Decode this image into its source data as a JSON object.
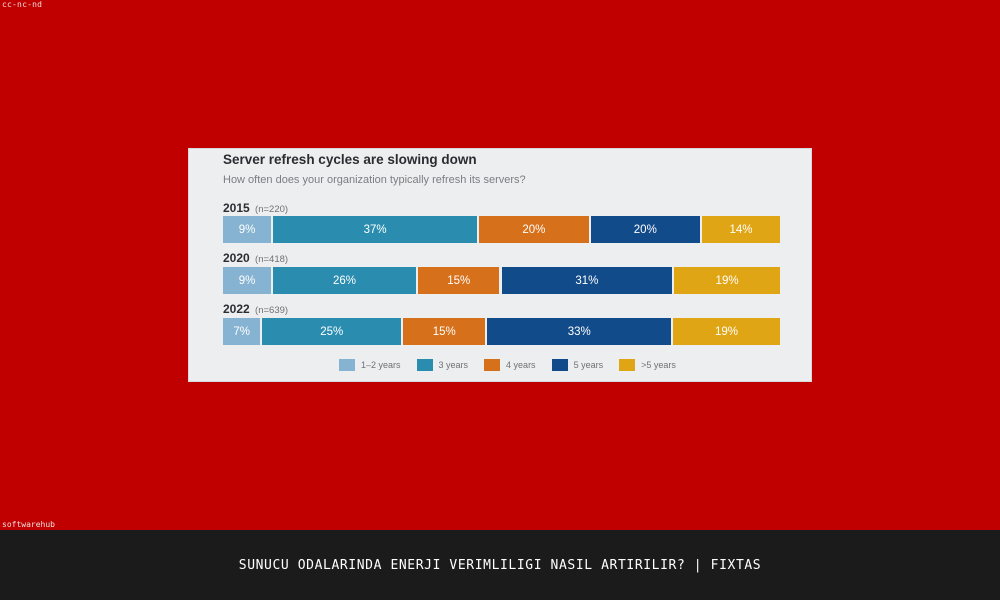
{
  "license_text": "cc-nc-nd",
  "watermark_text": "softwarehub",
  "footer": {
    "title": "SUNUCU ODALARINDA ENERJI VERIMLILIGI NASIL ARTIRILIR? | FIXTAS"
  },
  "colors": {
    "page_background": "#c00000",
    "footer_background": "#1b1b1b",
    "series": [
      "#86b3d1",
      "#2a8db0",
      "#d7701a",
      "#124b8a",
      "#e0a514"
    ]
  },
  "chart_data": {
    "type": "bar",
    "orientation": "horizontal-stacked-100",
    "title": "Server refresh cycles are slowing down",
    "subtitle": "How often does your organization typically refresh its servers?",
    "legend_position": "bottom",
    "series_names": [
      "1–2 years",
      "3 years",
      "4 years",
      "5 years",
      ">5 years"
    ],
    "rows": [
      {
        "year": "2015",
        "n": "(n=220)",
        "values": [
          9,
          37,
          20,
          20,
          14
        ],
        "labels": [
          "9%",
          "37%",
          "20%",
          "20%",
          "14%"
        ]
      },
      {
        "year": "2020",
        "n": "(n=418)",
        "values": [
          9,
          26,
          15,
          31,
          19
        ],
        "labels": [
          "9%",
          "26%",
          "15%",
          "31%",
          "19%"
        ]
      },
      {
        "year": "2022",
        "n": "(n=639)",
        "values": [
          7,
          25,
          15,
          33,
          19
        ],
        "labels": [
          "7%",
          "25%",
          "15%",
          "33%",
          "19%"
        ]
      }
    ]
  }
}
